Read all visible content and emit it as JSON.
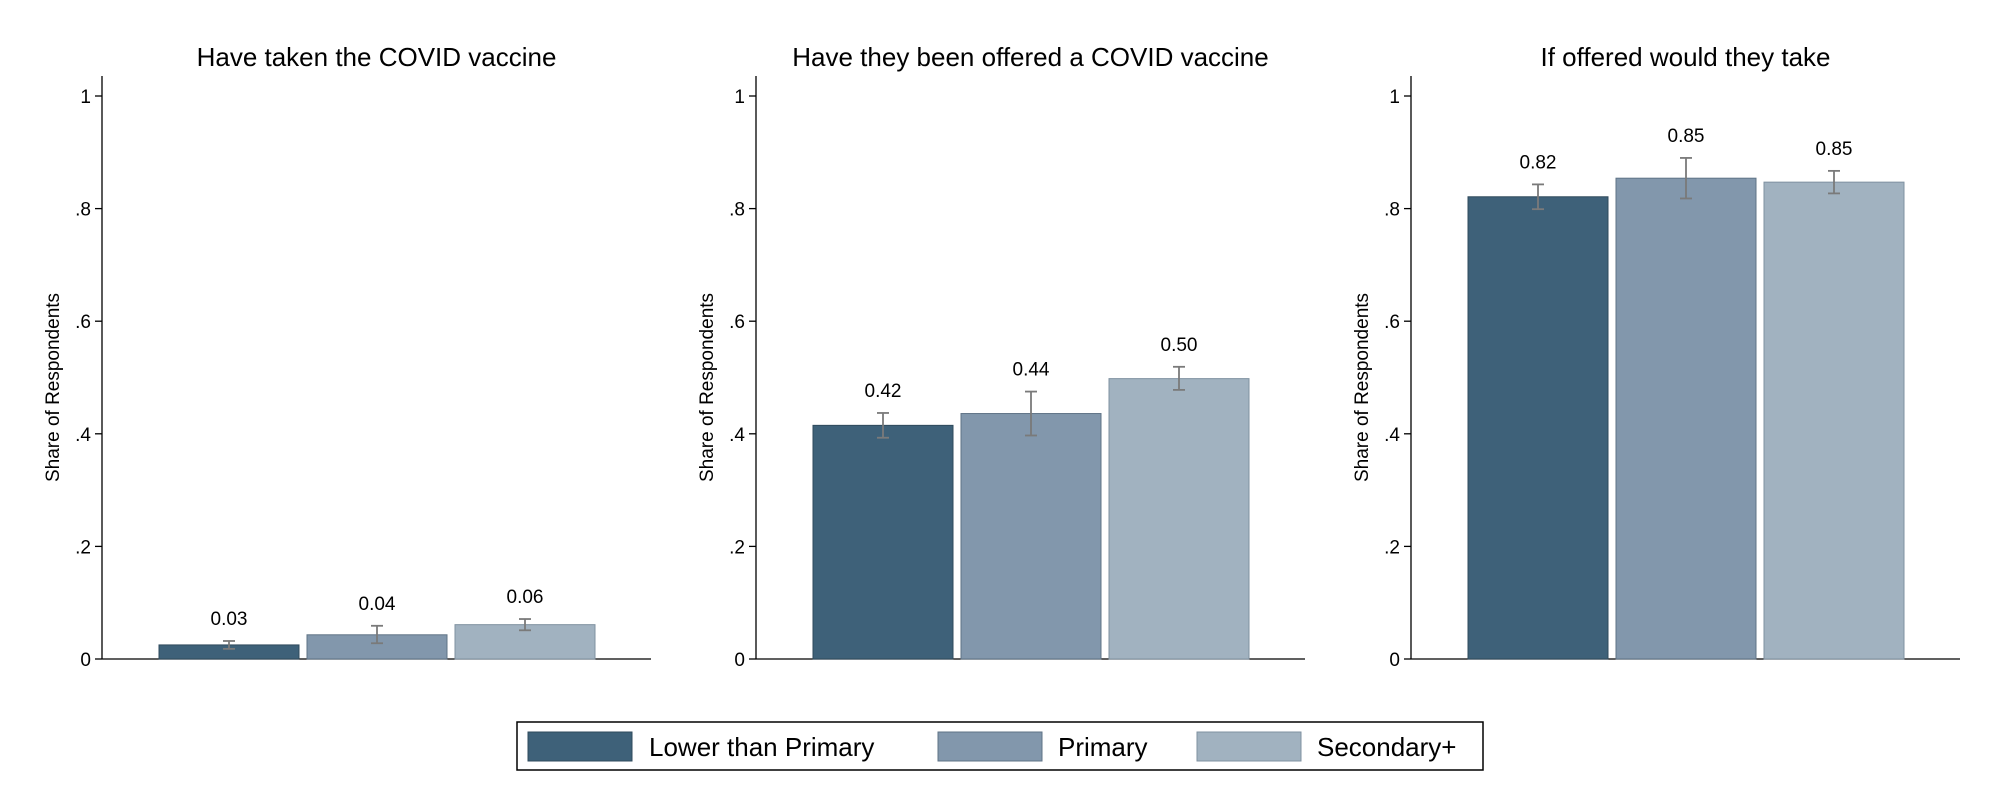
{
  "chart_data": {
    "type": "bar",
    "series_colors": [
      "#3e6179",
      "#8297ac",
      "#a1b2c0"
    ],
    "error_bar_color": "#7a7a7a",
    "grid": false,
    "legend": {
      "placement": "bottom-center",
      "entries": [
        "Lower than Primary",
        "Primary",
        "Secondary+"
      ]
    },
    "panels": [
      {
        "title": "Have taken the COVID vaccine",
        "ylabel": "Share of Respondents",
        "ylim": [
          0,
          1
        ],
        "yticks": [
          0,
          0.2,
          0.4,
          0.6,
          0.8,
          1
        ],
        "yticklabels": [
          "0",
          ".2",
          ".4",
          ".6",
          ".8",
          "1"
        ],
        "series": [
          {
            "name": "Lower than Primary",
            "value": 0.025,
            "label": "0.03",
            "ci": [
              0.018,
              0.032
            ]
          },
          {
            "name": "Primary",
            "value": 0.043,
            "label": "0.04",
            "ci": [
              0.028,
              0.059
            ]
          },
          {
            "name": "Secondary+",
            "value": 0.061,
            "label": "0.06",
            "ci": [
              0.051,
              0.071
            ]
          }
        ]
      },
      {
        "title": "Have they been offered a COVID vaccine",
        "ylabel": "Share of Respondents",
        "ylim": [
          0,
          1
        ],
        "yticks": [
          0,
          0.2,
          0.4,
          0.6,
          0.8,
          1
        ],
        "yticklabels": [
          "0",
          ".2",
          ".4",
          ".6",
          ".8",
          "1"
        ],
        "series": [
          {
            "name": "Lower than Primary",
            "value": 0.415,
            "label": "0.42",
            "ci": [
              0.393,
              0.437
            ]
          },
          {
            "name": "Primary",
            "value": 0.436,
            "label": "0.44",
            "ci": [
              0.397,
              0.475
            ]
          },
          {
            "name": "Secondary+",
            "value": 0.498,
            "label": "0.50",
            "ci": [
              0.478,
              0.519
            ]
          }
        ]
      },
      {
        "title": "If offered would they take",
        "ylabel": "Share of Respondents",
        "ylim": [
          0,
          1
        ],
        "yticks": [
          0,
          0.2,
          0.4,
          0.6,
          0.8,
          1
        ],
        "yticklabels": [
          "0",
          ".2",
          ".4",
          ".6",
          ".8",
          "1"
        ],
        "series": [
          {
            "name": "Lower than Primary",
            "value": 0.821,
            "label": "0.82",
            "ci": [
              0.799,
              0.843
            ]
          },
          {
            "name": "Primary",
            "value": 0.854,
            "label": "0.85",
            "ci": [
              0.818,
              0.89
            ]
          },
          {
            "name": "Secondary+",
            "value": 0.847,
            "label": "0.85",
            "ci": [
              0.827,
              0.867
            ]
          }
        ]
      }
    ]
  }
}
